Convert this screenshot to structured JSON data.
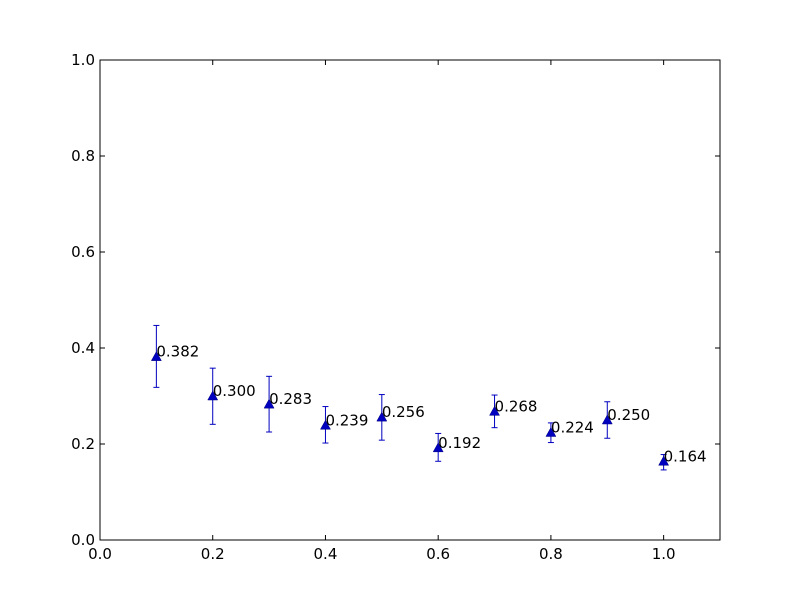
{
  "chart_data": {
    "type": "scatter",
    "title": "",
    "xlabel": "",
    "ylabel": "",
    "xlim": [
      0.0,
      1.1
    ],
    "ylim": [
      0.0,
      1.0
    ],
    "xticks": [
      0.0,
      0.2,
      0.4,
      0.6,
      0.8,
      1.0
    ],
    "xtick_labels": [
      "0.0",
      "0.2",
      "0.4",
      "0.6",
      "0.8",
      "1.0"
    ],
    "yticks": [
      0.0,
      0.2,
      0.4,
      0.6,
      0.8,
      1.0
    ],
    "ytick_labels": [
      "0.0",
      "0.2",
      "0.4",
      "0.6",
      "0.8",
      "1.0"
    ],
    "grid": false,
    "marker": "triangle",
    "color": "#0000bf",
    "series": [
      {
        "x": [
          0.1,
          0.2,
          0.3,
          0.4,
          0.5,
          0.6,
          0.7,
          0.8,
          0.9,
          1.0
        ],
        "y": [
          0.382,
          0.3,
          0.283,
          0.239,
          0.256,
          0.192,
          0.268,
          0.224,
          0.25,
          0.164
        ],
        "yerr_low": [
          0.318,
          0.241,
          0.225,
          0.202,
          0.208,
          0.164,
          0.234,
          0.203,
          0.212,
          0.146
        ],
        "yerr_high": [
          0.447,
          0.358,
          0.341,
          0.278,
          0.303,
          0.222,
          0.302,
          0.244,
          0.288,
          0.178
        ],
        "labels": [
          "0.382",
          "0.300",
          "0.283",
          "0.239",
          "0.256",
          "0.192",
          "0.268",
          "0.224",
          "0.250",
          "0.164"
        ]
      }
    ]
  }
}
